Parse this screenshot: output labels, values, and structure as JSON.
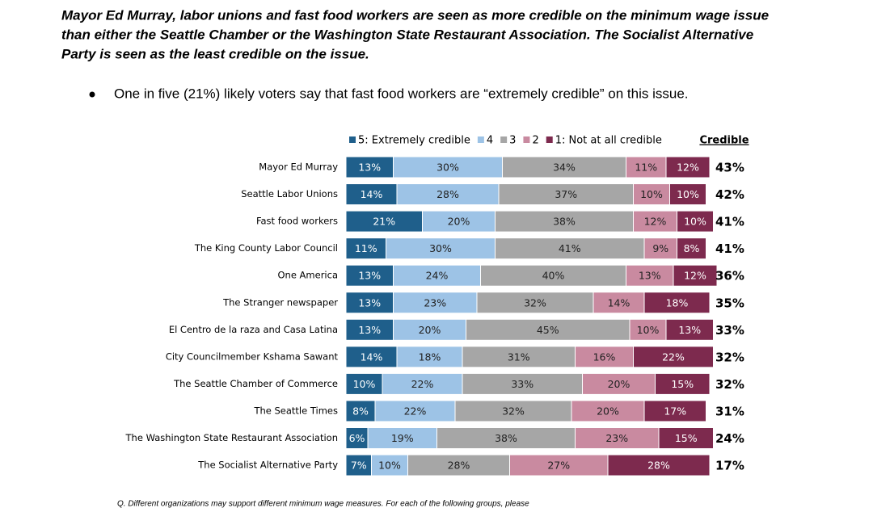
{
  "heading": [
    "Mayor Ed Murray, labor unions and fast food workers are seen as more credible on the minimum wage issue",
    "than either the Seattle Chamber or the Washington State Restaurant Association. The Socialist Alternative",
    "Party is seen as the least credible on the issue."
  ],
  "bullet": "One in five (21%) likely voters say that fast food workers are “extremely credible” on this issue.",
  "footnote": "Q. Different organizations may support different minimum wage measures. For each of the following groups, please",
  "chart_data": {
    "type": "bar",
    "orientation": "horizontal",
    "stacked": true,
    "categories": [
      "Mayor Ed Murray",
      "Seattle Labor Unions",
      "Fast food workers",
      "The King County Labor Council",
      "One America",
      "The Stranger newspaper",
      "El Centro de la raza and Casa Latina",
      "City Councilmember Kshama Sawant",
      "The Seattle Chamber of Commerce",
      "The Seattle Times",
      "The Washington State Restaurant Association",
      "The Socialist Alternative Party"
    ],
    "series": [
      {
        "name": "5: Extremely credible",
        "color": "#1f5f8b",
        "values": [
          13,
          14,
          21,
          11,
          13,
          13,
          13,
          14,
          10,
          8,
          6,
          7
        ],
        "value_labels": [
          "13%",
          "14%",
          "21%",
          "11%",
          "13%",
          "13%",
          "13%",
          "14%",
          "10%",
          "8%",
          "6%",
          "7%"
        ]
      },
      {
        "name": "4",
        "color": "#9dc3e6",
        "values": [
          30,
          28,
          20,
          30,
          24,
          23,
          20,
          18,
          22,
          22,
          19,
          10
        ],
        "value_labels": [
          "30%",
          "28%",
          "20%",
          "30%",
          "24%",
          "23%",
          "20%",
          "18%",
          "22%",
          "22%",
          "19%",
          "10%"
        ]
      },
      {
        "name": "3",
        "color": "#a6a6a6",
        "values": [
          34,
          37,
          38,
          41,
          40,
          32,
          45,
          31,
          33,
          32,
          38,
          28
        ],
        "value_labels": [
          "34%",
          "37%",
          "38%",
          "41%",
          "40%",
          "32%",
          "45%",
          "31%",
          "33%",
          "32%",
          "38%",
          "28%"
        ]
      },
      {
        "name": "2",
        "color": "#c98aa0",
        "values": [
          11,
          10,
          12,
          9,
          13,
          14,
          10,
          16,
          20,
          20,
          23,
          27
        ],
        "value_labels": [
          "11%",
          "10%",
          "12%",
          "9%",
          "13%",
          "14%",
          "10%",
          "16%",
          "20%",
          "20%",
          "23%",
          "27%"
        ]
      },
      {
        "name": "1: Not at all credible",
        "color": "#7d2a4e",
        "values": [
          12,
          10,
          10,
          8,
          12,
          18,
          13,
          22,
          15,
          17,
          15,
          28
        ],
        "value_labels": [
          "12%",
          "10%",
          "10%",
          "8%",
          "12%",
          "18%",
          "13%",
          "22%",
          "15%",
          "17%",
          "15%",
          "28%"
        ]
      }
    ],
    "credible": {
      "label": "Credible",
      "values": [
        43,
        42,
        41,
        41,
        36,
        35,
        33,
        32,
        32,
        31,
        24,
        17
      ],
      "value_labels": [
        "43%",
        "42%",
        "41%",
        "41%",
        "36%",
        "35%",
        "33%",
        "32%",
        "32%",
        "31%",
        "24%",
        "17%"
      ]
    }
  }
}
